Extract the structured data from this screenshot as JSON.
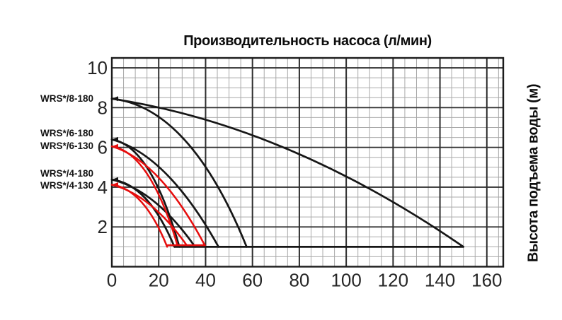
{
  "chart_data": {
    "type": "line",
    "title": "Производительность насоса (л/мин)",
    "right_axis_label": "Высота подъема воды (м)",
    "xlabel_units": "л/мин",
    "ylabel_units": "м",
    "xlim": [
      0,
      167
    ],
    "ylim": [
      0,
      10.5
    ],
    "x_ticks": [
      0,
      20,
      40,
      60,
      80,
      100,
      120,
      140,
      160
    ],
    "y_ticks": [
      2,
      4,
      6,
      8,
      10
    ],
    "x_minor_step": 5,
    "y_minor_step": 0.5,
    "grid": true,
    "colors": {
      "black_curve": "#161616",
      "red_curve": "#e60d0d",
      "grid_minor": "#a9a9a9",
      "grid_major": "#2e2e2e",
      "background": "#ffffff"
    },
    "series": [
      {
        "name": "WRS*/8-180",
        "color": "#161616",
        "head_m": 8.45,
        "q_steep_end": 57.5,
        "q_shallow_end": 150,
        "min_head_m": 1
      },
      {
        "name": "WRS*/6-180",
        "color": "#161616",
        "head_m": 6.4,
        "q_steep_end": 28.8,
        "q_shallow_end": 45.5,
        "min_head_m": 1
      },
      {
        "name": "WRS*/6-130",
        "color": "#e60d0d",
        "head_m": 6.05,
        "q_steep_end": 28.2,
        "q_shallow_end": 40,
        "min_head_m": 1
      },
      {
        "name": "WRS*/4-180",
        "color": "#161616",
        "head_m": 4.38,
        "q_steep_end": 26.7,
        "q_shallow_end": 35.5,
        "min_head_m": 1
      },
      {
        "name": "WRS*/4-130",
        "color": "#e60d0d",
        "head_m": 4.12,
        "q_steep_end": 23.6,
        "q_shallow_end": 32.4,
        "min_head_m": 1
      }
    ],
    "bottom_envelope_lines": [
      {
        "color": "#161616",
        "head_m": 1.0,
        "q_from": 26.7,
        "q_to": 150
      },
      {
        "color": "#e60d0d",
        "head_m": 1.08,
        "q_from": 23.6,
        "q_to": 40
      }
    ]
  }
}
